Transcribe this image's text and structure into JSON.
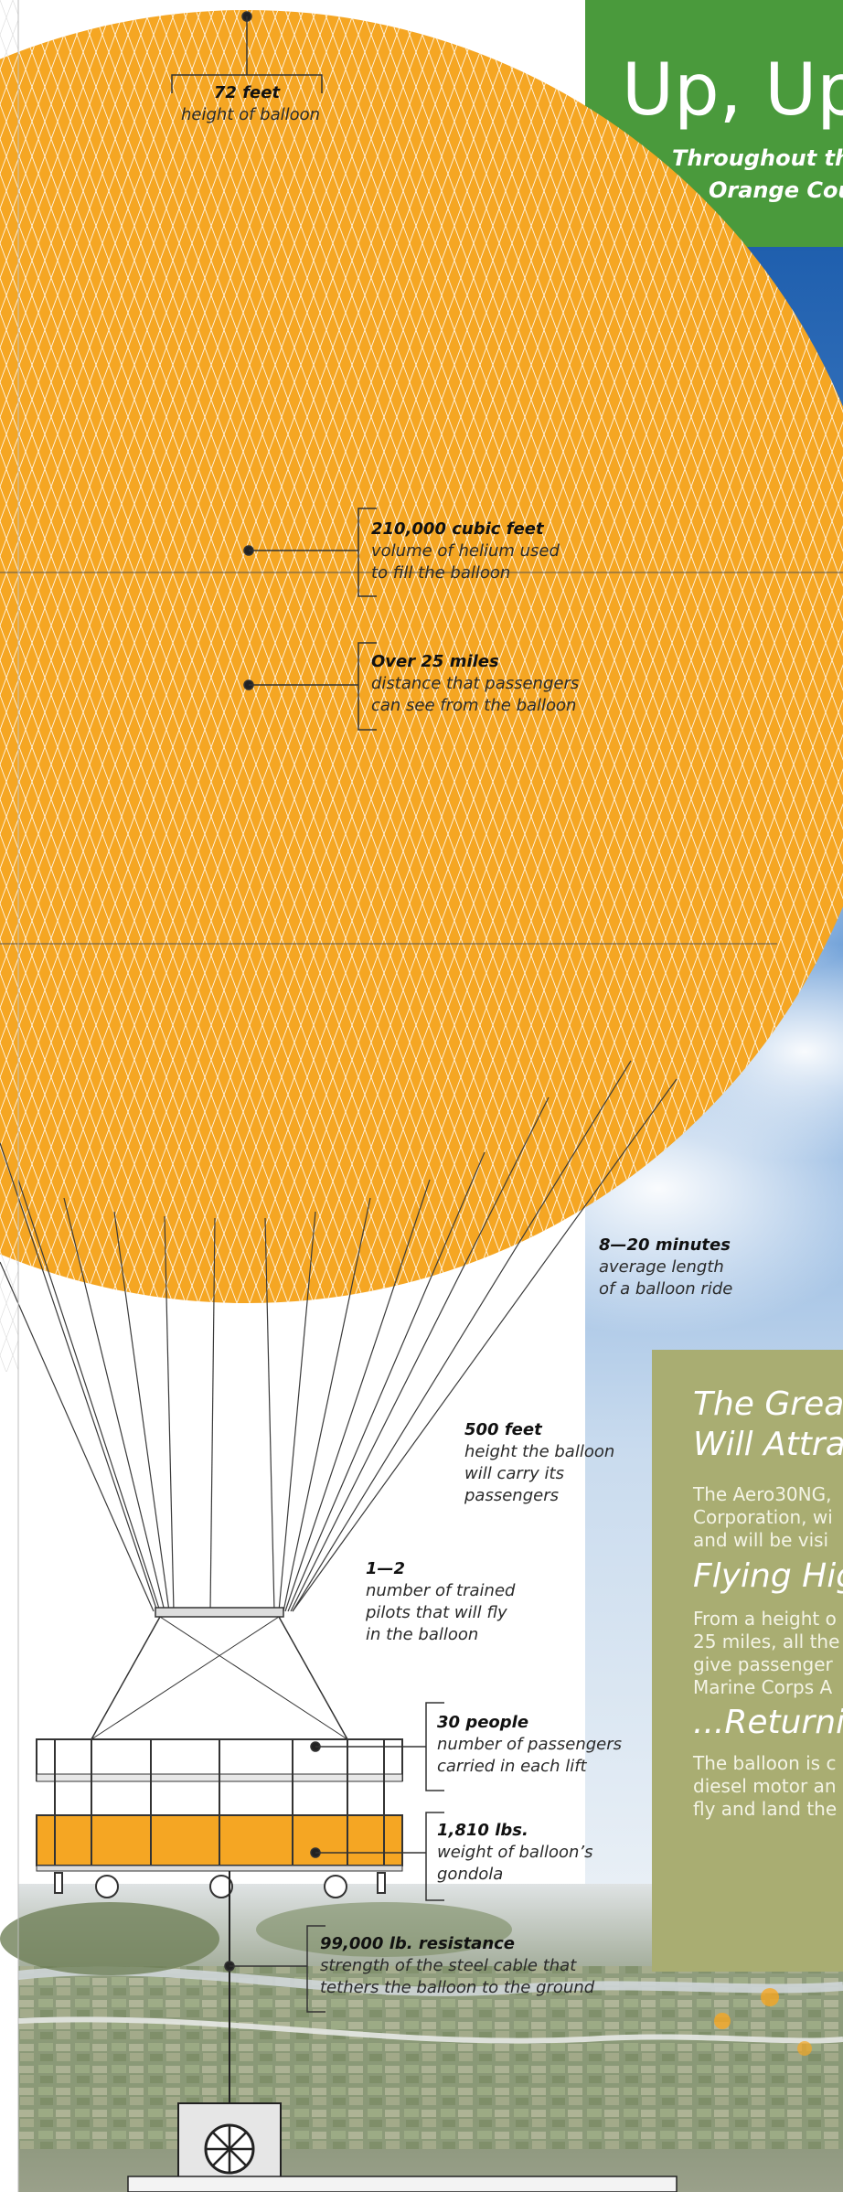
{
  "header": {
    "title": "Up, Up",
    "subtitle_lines": [
      "Throughout the",
      "Orange Coun"
    ]
  },
  "callouts": {
    "height": {
      "value": "72 feet",
      "lines": [
        "height of balloon"
      ]
    },
    "helium": {
      "value": "210,000 cubic feet",
      "lines": [
        "volume of helium used",
        "to fill the balloon"
      ]
    },
    "view": {
      "value": "Over 25 miles",
      "lines": [
        "distance that passengers",
        "can see from the balloon"
      ]
    },
    "ride": {
      "value": "8—20 minutes",
      "lines": [
        "average length",
        "of a balloon ride"
      ]
    },
    "altitude": {
      "value": "500 feet",
      "lines": [
        "height the balloon",
        "will carry its",
        "passengers"
      ]
    },
    "pilots": {
      "value": "1—2",
      "lines": [
        "number of trained",
        "pilots that will fly",
        "in the balloon"
      ]
    },
    "people": {
      "value": "30 people",
      "lines": [
        "number of passengers",
        "carried in each lift"
      ]
    },
    "weight": {
      "value": "1,810 lbs.",
      "lines": [
        "weight of balloon’s",
        "gondola"
      ]
    },
    "cable": {
      "value": "99,000 lb. resistance",
      "lines": [
        "strength of the steel cable that",
        "tethers the balloon to the ground"
      ]
    }
  },
  "panel": {
    "heading1_lines": [
      "The Great",
      "Will Attra"
    ],
    "para1_lines": [
      "The Aero30NG,",
      "Corporation, wi",
      "and will be visi"
    ],
    "heading2": "Flying Hig",
    "para2_lines": [
      "From a height o",
      "25 miles, all the",
      "give passenger",
      "Marine Corps A"
    ],
    "heading3": "...Returni",
    "para3_lines": [
      "The balloon is c",
      "diesel motor an",
      "fly and land the"
    ]
  },
  "colors": {
    "balloon": "#f5a623",
    "header_green": "#4a9a3c",
    "panel_olive": "#a9ad72",
    "sky_blue": "#3a79c2"
  }
}
